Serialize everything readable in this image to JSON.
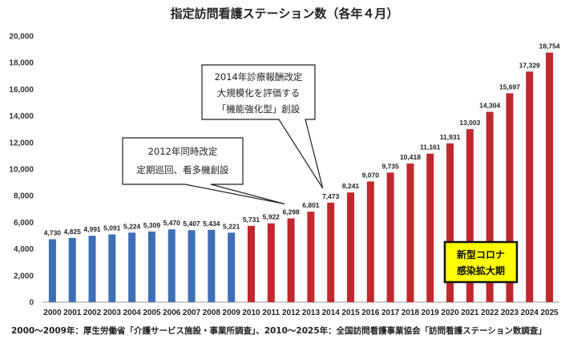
{
  "chart_data": {
    "type": "bar",
    "title": "指定訪問看護ステーション数（各年４月）",
    "categories": [
      "2000",
      "2001",
      "2002",
      "2003",
      "2004",
      "2005",
      "2006",
      "2007",
      "2008",
      "2009",
      "2010",
      "2011",
      "2012",
      "2013",
      "2014",
      "2015",
      "2016",
      "2017",
      "2018",
      "2019",
      "2020",
      "2021",
      "2022",
      "2023",
      "2024",
      "2025"
    ],
    "values": [
      4730,
      4825,
      4991,
      5091,
      5224,
      5309,
      5470,
      5407,
      5434,
      5221,
      5731,
      5922,
      6298,
      6801,
      7473,
      8241,
      9070,
      9735,
      10418,
      11161,
      11931,
      13003,
      14304,
      15697,
      17329,
      18754
    ],
    "data_labels": [
      "4,730",
      "4,825",
      "4,991",
      "5,091",
      "5,224",
      "5,309",
      "5,470",
      "5,407",
      "5,434",
      "5,221",
      "5,731",
      "5,922",
      "6,298",
      "6,801",
      "7,473",
      "8,241",
      "9,070",
      "9,735",
      "10,418",
      "11,161",
      "11,931",
      "13,003",
      "14,304",
      "15,697",
      "17,329",
      "18,754"
    ],
    "ylim": [
      0,
      20000
    ],
    "yticks": [
      "0",
      "2,000",
      "4,000",
      "6,000",
      "8,000",
      "10,000",
      "12,000",
      "14,000",
      "16,000",
      "18,000",
      "20,000"
    ],
    "ytick_values": [
      0,
      2000,
      4000,
      6000,
      8000,
      10000,
      12000,
      14000,
      16000,
      18000,
      20000
    ],
    "grid": false,
    "colors": {
      "2000-2009": "#3d6fb6",
      "2010-2025": "#c0282d"
    },
    "annotations": [
      {
        "target": "2012",
        "lines": [
          "2012年同時改定",
          "定期巡回、看多機創設"
        ]
      },
      {
        "target": "2014",
        "lines": [
          "2014年診療報酬改定",
          "大規模化を評価する",
          "「機能強化型」創設"
        ]
      },
      {
        "lines": [
          "新型コロナ",
          "感染拡大期"
        ],
        "box_color": "#ffff00"
      }
    ]
  },
  "footnote": "2000～2009年：厚生労働省「介護サービス施設・事業所調査」、2010～2025年：全国訪問看護事業協会「訪問看護ステーション数調査」"
}
